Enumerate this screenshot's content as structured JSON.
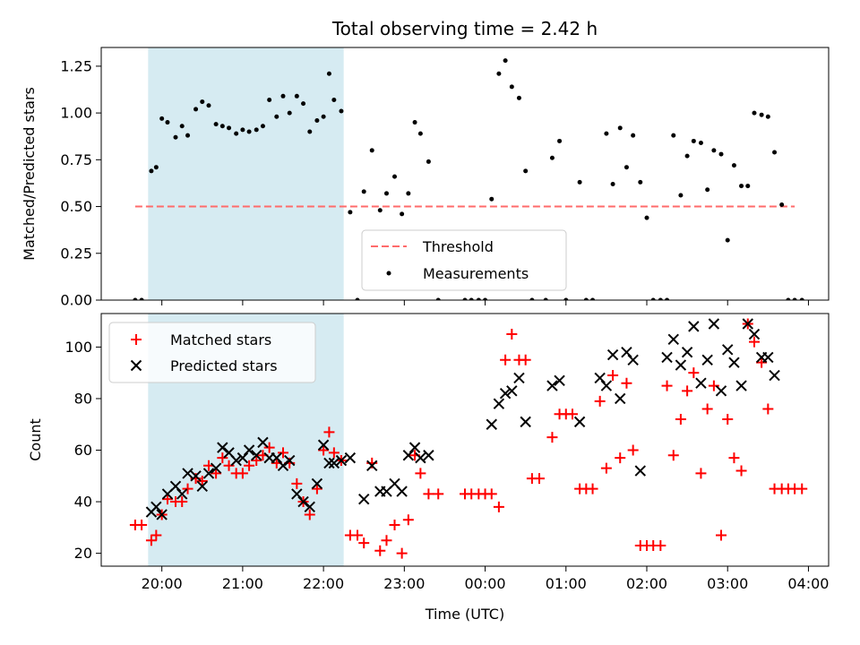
{
  "title": "Total observing time = 2.42 h",
  "colors": {
    "shade": "#add8e6",
    "threshold": "#ff6b6b",
    "measurement": "#000000",
    "matched": "#ff0000",
    "predicted": "#000000"
  },
  "chart_data": [
    {
      "type": "scatter",
      "ylabel": "Matched/Predicted stars",
      "xlim": [
        19.25,
        28.25
      ],
      "ylim": [
        0,
        1.35
      ],
      "yticks": [
        0,
        0.25,
        0.5,
        0.75,
        1.0,
        1.25
      ],
      "ytick_labels": [
        "0.00",
        "0.25",
        "0.50",
        "0.75",
        "1.00",
        "1.25"
      ],
      "shade_range": [
        19.83,
        22.25
      ],
      "threshold": {
        "name": "Threshold",
        "value": 0.5,
        "x_range": [
          19.67,
          27.83
        ]
      },
      "legend": {
        "location": "lower-center",
        "entries": [
          "Threshold",
          "Measurements"
        ]
      },
      "series": [
        {
          "name": "Measurements",
          "points": [
            [
              19.67,
              0
            ],
            [
              19.75,
              0
            ],
            [
              19.87,
              0.69
            ],
            [
              19.93,
              0.71
            ],
            [
              20.0,
              0.97
            ],
            [
              20.07,
              0.95
            ],
            [
              20.17,
              0.87
            ],
            [
              20.25,
              0.93
            ],
            [
              20.32,
              0.88
            ],
            [
              20.42,
              1.02
            ],
            [
              20.5,
              1.06
            ],
            [
              20.58,
              1.04
            ],
            [
              20.67,
              0.94
            ],
            [
              20.75,
              0.93
            ],
            [
              20.83,
              0.92
            ],
            [
              20.92,
              0.89
            ],
            [
              21.0,
              0.91
            ],
            [
              21.08,
              0.9
            ],
            [
              21.17,
              0.91
            ],
            [
              21.25,
              0.93
            ],
            [
              21.33,
              1.07
            ],
            [
              21.42,
              0.98
            ],
            [
              21.5,
              1.09
            ],
            [
              21.58,
              1.0
            ],
            [
              21.67,
              1.09
            ],
            [
              21.75,
              1.05
            ],
            [
              21.83,
              0.9
            ],
            [
              21.92,
              0.96
            ],
            [
              22.0,
              0.98
            ],
            [
              22.07,
              1.21
            ],
            [
              22.13,
              1.07
            ],
            [
              22.22,
              1.01
            ],
            [
              22.33,
              0.47
            ],
            [
              22.42,
              0
            ],
            [
              22.5,
              0.58
            ],
            [
              22.6,
              0.8
            ],
            [
              22.7,
              0.48
            ],
            [
              22.78,
              0.57
            ],
            [
              22.88,
              0.66
            ],
            [
              22.97,
              0.46
            ],
            [
              23.05,
              0.57
            ],
            [
              23.13,
              0.95
            ],
            [
              23.2,
              0.89
            ],
            [
              23.3,
              0.74
            ],
            [
              23.42,
              0
            ],
            [
              23.75,
              0
            ],
            [
              23.83,
              0
            ],
            [
              23.92,
              0
            ],
            [
              24.0,
              0
            ],
            [
              24.08,
              0.54
            ],
            [
              24.17,
              1.21
            ],
            [
              24.25,
              1.28
            ],
            [
              24.33,
              1.14
            ],
            [
              24.42,
              1.08
            ],
            [
              24.5,
              0.69
            ],
            [
              24.58,
              0
            ],
            [
              24.75,
              0
            ],
            [
              24.83,
              0.76
            ],
            [
              24.92,
              0.85
            ],
            [
              25.0,
              0
            ],
            [
              25.17,
              0.63
            ],
            [
              25.25,
              0
            ],
            [
              25.33,
              0
            ],
            [
              25.5,
              0.89
            ],
            [
              25.58,
              0.62
            ],
            [
              25.67,
              0.92
            ],
            [
              25.75,
              0.71
            ],
            [
              25.83,
              0.88
            ],
            [
              25.92,
              0.63
            ],
            [
              26.0,
              0.44
            ],
            [
              26.08,
              0
            ],
            [
              26.17,
              0
            ],
            [
              26.25,
              0
            ],
            [
              26.33,
              0.88
            ],
            [
              26.42,
              0.56
            ],
            [
              26.5,
              0.77
            ],
            [
              26.58,
              0.85
            ],
            [
              26.67,
              0.84
            ],
            [
              26.75,
              0.59
            ],
            [
              26.83,
              0.8
            ],
            [
              26.92,
              0.78
            ],
            [
              27.0,
              0.32
            ],
            [
              27.08,
              0.72
            ],
            [
              27.17,
              0.61
            ],
            [
              27.25,
              0.61
            ],
            [
              27.33,
              1.0
            ],
            [
              27.42,
              0.99
            ],
            [
              27.5,
              0.98
            ],
            [
              27.58,
              0.79
            ],
            [
              27.67,
              0.51
            ],
            [
              27.75,
              0
            ],
            [
              27.83,
              0
            ],
            [
              27.92,
              0
            ]
          ]
        }
      ]
    },
    {
      "type": "scatter",
      "xlabel": "Time (UTC)",
      "ylabel": "Count",
      "xlim": [
        19.25,
        28.25
      ],
      "ylim": [
        15,
        113
      ],
      "yticks": [
        20,
        40,
        60,
        80,
        100
      ],
      "xticks": [
        20,
        21,
        22,
        23,
        24,
        25,
        26,
        27,
        28
      ],
      "xtick_labels": [
        "20:00",
        "21:00",
        "22:00",
        "23:00",
        "00:00",
        "01:00",
        "02:00",
        "03:00",
        "04:00"
      ],
      "shade_range": [
        19.83,
        22.25
      ],
      "legend": {
        "location": "upper-left",
        "entries": [
          "Matched stars",
          "Predicted stars"
        ]
      },
      "series": [
        {
          "name": "Matched stars",
          "marker": "plus",
          "points": [
            [
              19.67,
              31
            ],
            [
              19.75,
              31
            ],
            [
              19.87,
              25
            ],
            [
              19.93,
              27
            ],
            [
              20.0,
              35
            ],
            [
              20.07,
              41
            ],
            [
              20.17,
              40
            ],
            [
              20.25,
              40
            ],
            [
              20.32,
              45
            ],
            [
              20.42,
              49
            ],
            [
              20.5,
              48
            ],
            [
              20.58,
              54
            ],
            [
              20.67,
              51
            ],
            [
              20.75,
              57
            ],
            [
              20.83,
              54
            ],
            [
              20.92,
              51
            ],
            [
              21.0,
              51
            ],
            [
              21.08,
              54
            ],
            [
              21.17,
              56
            ],
            [
              21.25,
              58
            ],
            [
              21.33,
              61
            ],
            [
              21.42,
              55
            ],
            [
              21.5,
              59
            ],
            [
              21.58,
              55
            ],
            [
              21.67,
              47
            ],
            [
              21.75,
              40
            ],
            [
              21.83,
              35
            ],
            [
              21.92,
              45
            ],
            [
              22.0,
              60
            ],
            [
              22.07,
              67
            ],
            [
              22.13,
              59
            ],
            [
              22.22,
              56
            ],
            [
              22.33,
              27
            ],
            [
              22.42,
              27
            ],
            [
              22.5,
              24
            ],
            [
              22.6,
              55
            ],
            [
              22.7,
              21
            ],
            [
              22.78,
              25
            ],
            [
              22.88,
              31
            ],
            [
              22.97,
              20
            ],
            [
              23.05,
              33
            ],
            [
              23.13,
              58
            ],
            [
              23.2,
              51
            ],
            [
              23.3,
              43
            ],
            [
              23.42,
              43
            ],
            [
              23.75,
              43
            ],
            [
              23.83,
              43
            ],
            [
              23.92,
              43
            ],
            [
              24.0,
              43
            ],
            [
              24.08,
              43
            ],
            [
              24.17,
              38
            ],
            [
              24.25,
              95
            ],
            [
              24.33,
              105
            ],
            [
              24.42,
              95
            ],
            [
              24.5,
              95
            ],
            [
              24.58,
              49
            ],
            [
              24.67,
              49
            ],
            [
              24.83,
              65
            ],
            [
              24.92,
              74
            ],
            [
              25.0,
              74
            ],
            [
              25.08,
              74
            ],
            [
              25.17,
              45
            ],
            [
              25.25,
              45
            ],
            [
              25.33,
              45
            ],
            [
              25.42,
              79
            ],
            [
              25.5,
              53
            ],
            [
              25.58,
              89
            ],
            [
              25.67,
              57
            ],
            [
              25.75,
              86
            ],
            [
              25.83,
              60
            ],
            [
              25.92,
              23
            ],
            [
              26.0,
              23
            ],
            [
              26.08,
              23
            ],
            [
              26.17,
              23
            ],
            [
              26.25,
              85
            ],
            [
              26.33,
              58
            ],
            [
              26.42,
              72
            ],
            [
              26.5,
              83
            ],
            [
              26.58,
              90
            ],
            [
              26.67,
              51
            ],
            [
              26.75,
              76
            ],
            [
              26.83,
              85
            ],
            [
              26.92,
              27
            ],
            [
              27.0,
              72
            ],
            [
              27.08,
              57
            ],
            [
              27.17,
              52
            ],
            [
              27.25,
              109
            ],
            [
              27.33,
              102
            ],
            [
              27.42,
              94
            ],
            [
              27.5,
              76
            ],
            [
              27.58,
              45
            ],
            [
              27.67,
              45
            ],
            [
              27.75,
              45
            ],
            [
              27.83,
              45
            ],
            [
              27.92,
              45
            ]
          ]
        },
        {
          "name": "Predicted stars",
          "marker": "x",
          "points": [
            [
              19.87,
              36
            ],
            [
              19.93,
              38
            ],
            [
              20.0,
              35
            ],
            [
              20.07,
              43
            ],
            [
              20.17,
              46
            ],
            [
              20.25,
              43
            ],
            [
              20.32,
              51
            ],
            [
              20.42,
              50
            ],
            [
              20.5,
              46
            ],
            [
              20.58,
              51
            ],
            [
              20.67,
              53
            ],
            [
              20.75,
              61
            ],
            [
              20.83,
              59
            ],
            [
              20.92,
              56
            ],
            [
              21.0,
              57
            ],
            [
              21.08,
              60
            ],
            [
              21.17,
              58
            ],
            [
              21.25,
              63
            ],
            [
              21.33,
              57
            ],
            [
              21.42,
              57
            ],
            [
              21.5,
              54
            ],
            [
              21.58,
              56
            ],
            [
              21.67,
              43
            ],
            [
              21.75,
              40
            ],
            [
              21.83,
              38
            ],
            [
              21.92,
              47
            ],
            [
              22.0,
              62
            ],
            [
              22.07,
              55
            ],
            [
              22.13,
              55
            ],
            [
              22.22,
              56
            ],
            [
              22.33,
              57
            ],
            [
              22.5,
              41
            ],
            [
              22.6,
              54
            ],
            [
              22.7,
              44
            ],
            [
              22.78,
              44
            ],
            [
              22.88,
              47
            ],
            [
              22.97,
              44
            ],
            [
              23.05,
              58
            ],
            [
              23.13,
              61
            ],
            [
              23.2,
              57
            ],
            [
              23.3,
              58
            ],
            [
              24.08,
              70
            ],
            [
              24.17,
              78
            ],
            [
              24.25,
              82
            ],
            [
              24.33,
              83
            ],
            [
              24.42,
              88
            ],
            [
              24.5,
              71
            ],
            [
              24.83,
              85
            ],
            [
              24.92,
              87
            ],
            [
              25.17,
              71
            ],
            [
              25.42,
              88
            ],
            [
              25.5,
              85
            ],
            [
              25.58,
              97
            ],
            [
              25.67,
              80
            ],
            [
              25.75,
              98
            ],
            [
              25.83,
              95
            ],
            [
              25.92,
              52
            ],
            [
              26.25,
              96
            ],
            [
              26.33,
              103
            ],
            [
              26.42,
              93
            ],
            [
              26.5,
              98
            ],
            [
              26.58,
              108
            ],
            [
              26.67,
              86
            ],
            [
              26.75,
              95
            ],
            [
              26.83,
              109
            ],
            [
              26.92,
              83
            ],
            [
              27.0,
              99
            ],
            [
              27.08,
              94
            ],
            [
              27.17,
              85
            ],
            [
              27.25,
              109
            ],
            [
              27.33,
              105
            ],
            [
              27.42,
              96
            ],
            [
              27.5,
              96
            ],
            [
              27.58,
              89
            ]
          ]
        }
      ]
    }
  ]
}
